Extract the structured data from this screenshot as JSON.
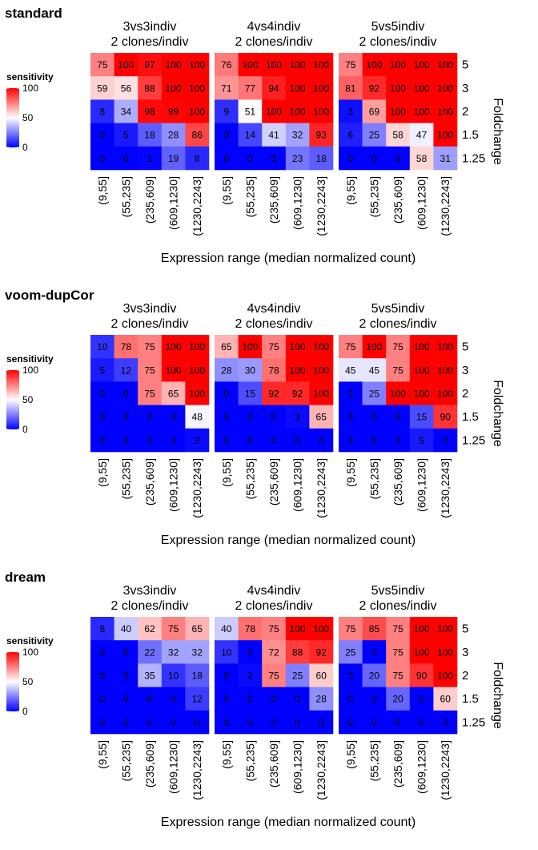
{
  "x_axis_title": "Expression range (median normalized count)",
  "y_axis_title": "Foldchange",
  "legend": {
    "title": "sensitivity",
    "ticks": [
      "100",
      "50",
      "0"
    ]
  },
  "row_labels": [
    "5",
    "3",
    "2",
    "1.5",
    "1.25"
  ],
  "col_labels": [
    "(9,55]",
    "(55,235]",
    "(235,609]",
    "(609,1230]",
    "(1230,2243]"
  ],
  "colors": {
    "low": "#0000ff",
    "mid": "#ffffff",
    "high": "#ff0000"
  },
  "chart_data": [
    {
      "type": "heatmap",
      "title": "standard",
      "facets": [
        {
          "label": "3vs3indiv\n2 clones/indiv",
          "values": [
            [
              75,
              100,
              97,
              100,
              100
            ],
            [
              59,
              56,
              88,
              100,
              100
            ],
            [
              8,
              34,
              98,
              99,
              100
            ],
            [
              0,
              5,
              18,
              28,
              86
            ],
            [
              0,
              0,
              1,
              19,
              8
            ]
          ]
        },
        {
          "label": "4vs4indiv\n2 clones/indiv",
          "values": [
            [
              76,
              100,
              100,
              100,
              100
            ],
            [
              71,
              77,
              94,
              100,
              100
            ],
            [
              9,
              51,
              100,
              100,
              100
            ],
            [
              0,
              14,
              41,
              32,
              93
            ],
            [
              0,
              0,
              0,
              23,
              18
            ]
          ]
        },
        {
          "label": "5vs5indiv\n2 clones/indiv",
          "values": [
            [
              75,
              100,
              100,
              100,
              100
            ],
            [
              81,
              92,
              100,
              100,
              100
            ],
            [
              3,
              69,
              100,
              100,
              100
            ],
            [
              6,
              25,
              58,
              47,
              100
            ],
            [
              0,
              0,
              0,
              58,
              31
            ]
          ]
        }
      ]
    },
    {
      "type": "heatmap",
      "title": "voom-dupCor",
      "facets": [
        {
          "label": "3vs3indiv\n2 clones/indiv",
          "values": [
            [
              10,
              78,
              75,
              100,
              100
            ],
            [
              5,
              12,
              75,
              100,
              100
            ],
            [
              0,
              0,
              75,
              65,
              100
            ],
            [
              0,
              0,
              0,
              0,
              48
            ],
            [
              0,
              0,
              0,
              0,
              2
            ]
          ]
        },
        {
          "label": "4vs4indiv\n2 clones/indiv",
          "values": [
            [
              65,
              100,
              75,
              100,
              100
            ],
            [
              28,
              30,
              78,
              100,
              100
            ],
            [
              0,
              15,
              92,
              92,
              100
            ],
            [
              0,
              0,
              0,
              2,
              65
            ],
            [
              0,
              0,
              0,
              0,
              0
            ]
          ]
        },
        {
          "label": "5vs5indiv\n2 clones/indiv",
          "values": [
            [
              75,
              100,
              75,
              100,
              100
            ],
            [
              45,
              45,
              75,
              100,
              100
            ],
            [
              0,
              25,
              100,
              100,
              100
            ],
            [
              0,
              0,
              0,
              15,
              90
            ],
            [
              0,
              0,
              0,
              5,
              0
            ]
          ]
        }
      ]
    },
    {
      "type": "heatmap",
      "title": "dream",
      "facets": [
        {
          "label": "3vs3indiv\n2 clones/indiv",
          "values": [
            [
              8,
              40,
              62,
              75,
              65
            ],
            [
              0,
              0,
              22,
              32,
              32
            ],
            [
              0,
              0,
              35,
              10,
              18
            ],
            [
              0,
              0,
              0,
              0,
              12
            ],
            [
              0,
              0,
              0,
              0,
              0
            ]
          ]
        },
        {
          "label": "4vs4indiv\n2 clones/indiv",
          "values": [
            [
              40,
              78,
              75,
              100,
              100
            ],
            [
              10,
              0,
              72,
              88,
              92
            ],
            [
              0,
              2,
              75,
              25,
              60
            ],
            [
              0,
              0,
              0,
              0,
              28
            ],
            [
              0,
              0,
              0,
              0,
              0
            ]
          ]
        },
        {
          "label": "5vs5indiv\n2 clones/indiv",
          "values": [
            [
              75,
              85,
              75,
              100,
              100
            ],
            [
              25,
              0,
              75,
              100,
              100
            ],
            [
              0,
              20,
              75,
              90,
              100
            ],
            [
              0,
              0,
              20,
              0,
              60
            ],
            [
              0,
              0,
              0,
              0,
              0
            ]
          ]
        }
      ]
    }
  ]
}
